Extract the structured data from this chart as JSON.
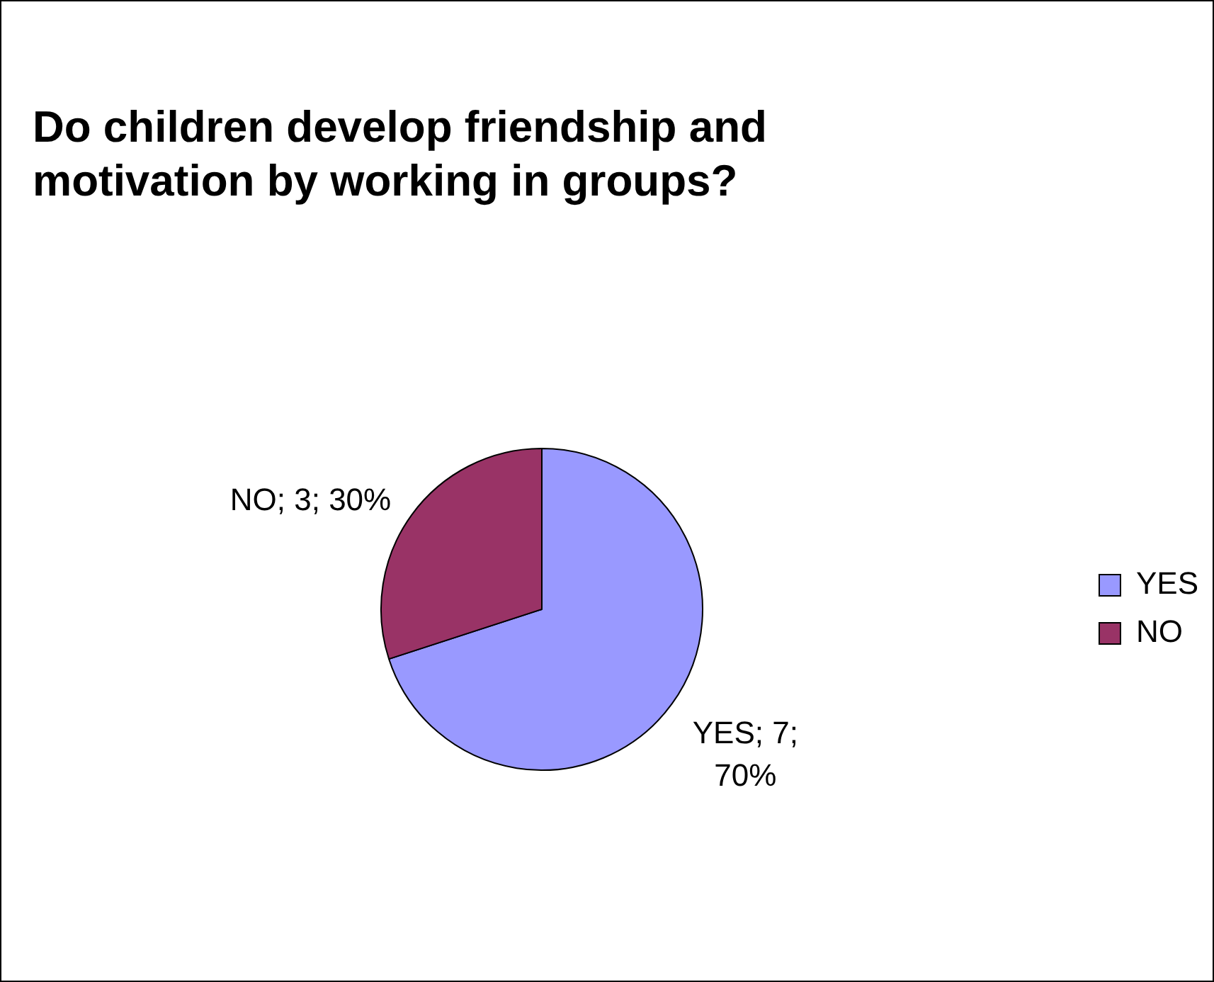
{
  "chart_data": {
    "type": "pie",
    "title": "Do children develop friendship and motivation by working in groups?",
    "categories": [
      "YES",
      "NO"
    ],
    "values": [
      7,
      3
    ],
    "colors": [
      "#9999ff",
      "#993366"
    ],
    "value_labels": [
      "YES; 7; 70%",
      "NO; 3; 30%"
    ],
    "legend": "right"
  }
}
